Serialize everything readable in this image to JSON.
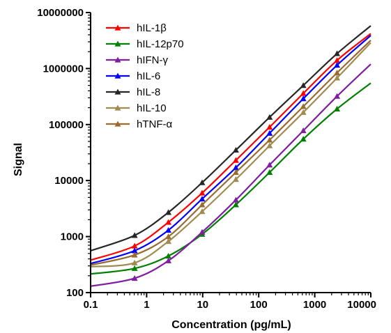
{
  "chart_data": {
    "type": "line",
    "title": "",
    "xlabel": "Concentration (pg/mL)",
    "ylabel": "Signal",
    "xscale": "log",
    "yscale": "log",
    "xlim": [
      0.1,
      10000
    ],
    "ylim": [
      100,
      10000000
    ],
    "xticks": [
      "0.1",
      "1",
      "10",
      "100",
      "1000",
      "10000"
    ],
    "yticks": [
      "100",
      "1000",
      "10000",
      "100000",
      "1000000",
      "10000000"
    ],
    "legend_position": "top-left",
    "grid": false,
    "x_points": [
      0.61,
      2.44,
      9.77,
      39.1,
      156.3,
      625,
      2500
    ],
    "series": [
      {
        "name": "hIL-1β",
        "color": "#ff0000",
        "start": 380,
        "end": 4200000,
        "values": [
          680,
          1800,
          6000,
          23000,
          90000,
          360000,
          1400000
        ]
      },
      {
        "name": "hIL-12p70",
        "color": "#008000",
        "start": 215,
        "end": 550000,
        "values": [
          270,
          450,
          1100,
          3700,
          14000,
          55000,
          190000
        ]
      },
      {
        "name": "hIFN-γ",
        "color": "#7f1fa0",
        "start": 130,
        "end": 1200000,
        "values": [
          180,
          370,
          1200,
          4500,
          19000,
          78000,
          320000
        ]
      },
      {
        "name": "hIL-6",
        "color": "#0000ff",
        "start": 330,
        "end": 3900000,
        "values": [
          560,
          1300,
          4700,
          17000,
          70000,
          290000,
          1150000
        ]
      },
      {
        "name": "hIL-8",
        "color": "#262626",
        "start": 560,
        "end": 5800000,
        "values": [
          1050,
          2700,
          9200,
          35000,
          135000,
          500000,
          1850000
        ]
      },
      {
        "name": "hIL-10",
        "color": "#a08c50",
        "start": 290,
        "end": 2900000,
        "values": [
          340,
          820,
          2800,
          10500,
          42000,
          165000,
          680000
        ]
      },
      {
        "name": "hTNF-α",
        "color": "#9a6a30",
        "start": 310,
        "end": 3200000,
        "values": [
          470,
          1000,
          3700,
          14000,
          53000,
          210000,
          840000
        ]
      }
    ]
  }
}
